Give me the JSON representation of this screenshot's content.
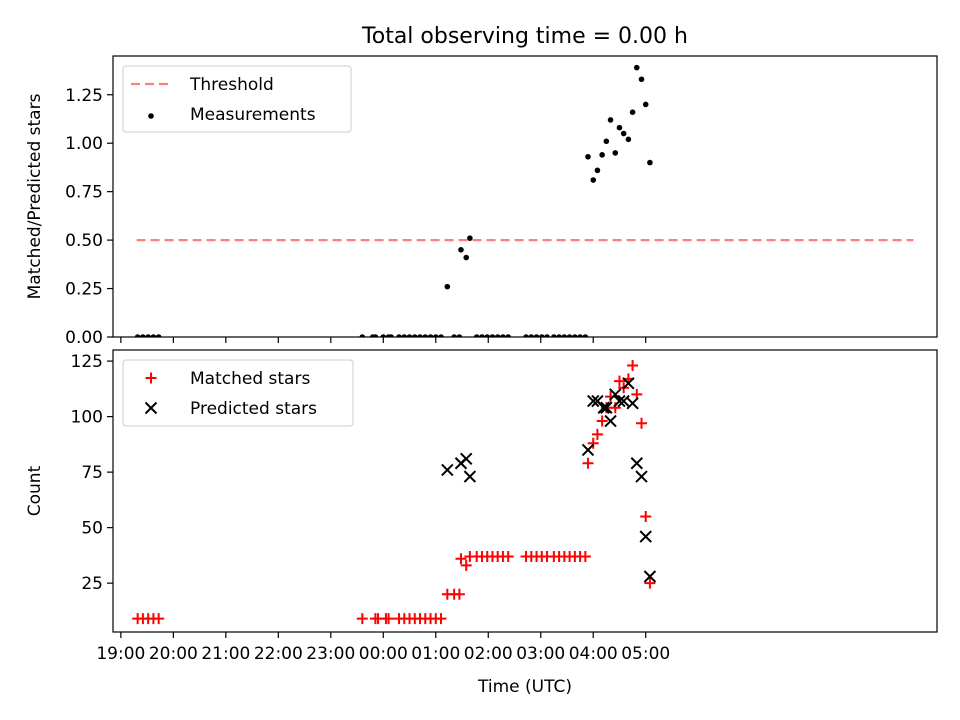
{
  "chart_data": [
    {
      "type": "scatter",
      "title": "Total observing time = 0.00 h",
      "xlabel": "",
      "ylabel": "Matched/Predicted stars",
      "ylim": [
        0,
        1.45
      ],
      "xlim": [
        -5.15,
        10.55
      ],
      "x_axis_unit": "hours relative to 00:00 UTC",
      "yticks": [
        0.0,
        0.25,
        0.5,
        0.75,
        1.0,
        1.25
      ],
      "ytick_labels": [
        "0.00",
        "0.25",
        "0.50",
        "0.75",
        "1.00",
        "1.25"
      ],
      "xticks_show_labels": false,
      "legend_position": "upper-left",
      "series": [
        {
          "name": "Threshold",
          "kind": "dashed-line",
          "color": "#ff7f7f",
          "x": [
            -4.7,
            10.1
          ],
          "y": [
            0.5,
            0.5
          ]
        },
        {
          "name": "Measurements",
          "kind": "dot",
          "color": "#000000",
          "points": [
            [
              -4.68,
              0
            ],
            [
              -4.58,
              0
            ],
            [
              -4.48,
              0
            ],
            [
              -4.38,
              0
            ],
            [
              -4.28,
              0
            ],
            [
              -0.4,
              0
            ],
            [
              -0.2,
              0
            ],
            [
              -0.15,
              0
            ],
            [
              0.0,
              0
            ],
            [
              0.1,
              0
            ],
            [
              0.15,
              0
            ],
            [
              0.3,
              0
            ],
            [
              0.4,
              0
            ],
            [
              0.5,
              0
            ],
            [
              0.6,
              0
            ],
            [
              0.7,
              0
            ],
            [
              0.8,
              0
            ],
            [
              0.9,
              0
            ],
            [
              1.0,
              0
            ],
            [
              1.1,
              0
            ],
            [
              1.22,
              0.26
            ],
            [
              1.35,
              0
            ],
            [
              1.45,
              0
            ],
            [
              1.48,
              0.45
            ],
            [
              1.58,
              0.41
            ],
            [
              1.65,
              0.51
            ],
            [
              1.78,
              0
            ],
            [
              1.88,
              0
            ],
            [
              1.98,
              0
            ],
            [
              2.08,
              0
            ],
            [
              2.18,
              0
            ],
            [
              2.28,
              0
            ],
            [
              2.38,
              0
            ],
            [
              2.72,
              0
            ],
            [
              2.82,
              0
            ],
            [
              2.92,
              0
            ],
            [
              3.02,
              0
            ],
            [
              3.12,
              0
            ],
            [
              3.25,
              0
            ],
            [
              3.35,
              0
            ],
            [
              3.45,
              0
            ],
            [
              3.55,
              0
            ],
            [
              3.65,
              0
            ],
            [
              3.75,
              0
            ],
            [
              3.85,
              0
            ],
            [
              3.9,
              0.93
            ],
            [
              4.0,
              0.81
            ],
            [
              4.08,
              0.86
            ],
            [
              4.17,
              0.94
            ],
            [
              4.25,
              1.01
            ],
            [
              4.33,
              1.12
            ],
            [
              4.42,
              0.95
            ],
            [
              4.5,
              1.08
            ],
            [
              4.58,
              1.05
            ],
            [
              4.67,
              1.02
            ],
            [
              4.75,
              1.16
            ],
            [
              4.83,
              1.39
            ],
            [
              4.92,
              1.33
            ],
            [
              5.0,
              1.2
            ],
            [
              5.08,
              0.9
            ]
          ]
        }
      ]
    },
    {
      "type": "scatter",
      "title": "",
      "xlabel": "Time (UTC)",
      "ylabel": "Count",
      "ylim": [
        3,
        130
      ],
      "xlim": [
        -5.15,
        10.55
      ],
      "yticks": [
        25,
        50,
        75,
        100,
        125
      ],
      "ytick_labels": [
        "25",
        "50",
        "75",
        "100",
        "125"
      ],
      "xticks": [
        -5,
        -4,
        -3,
        -2,
        -1,
        0,
        1,
        2,
        3,
        4,
        5
      ],
      "xtick_labels": [
        "19:00",
        "20:00",
        "21:00",
        "22:00",
        "23:00",
        "00:00",
        "01:00",
        "02:00",
        "03:00",
        "04:00",
        "05:00"
      ],
      "legend_position": "upper-left",
      "series": [
        {
          "name": "Matched stars",
          "kind": "plus",
          "color": "#ff0000",
          "points": [
            [
              -4.68,
              9
            ],
            [
              -4.58,
              9
            ],
            [
              -4.48,
              9
            ],
            [
              -4.38,
              9
            ],
            [
              -4.28,
              9
            ],
            [
              -0.4,
              9
            ],
            [
              -0.15,
              9
            ],
            [
              -0.1,
              9
            ],
            [
              0.05,
              9
            ],
            [
              0.1,
              9
            ],
            [
              0.3,
              9
            ],
            [
              0.4,
              9
            ],
            [
              0.5,
              9
            ],
            [
              0.6,
              9
            ],
            [
              0.7,
              9
            ],
            [
              0.8,
              9
            ],
            [
              0.9,
              9
            ],
            [
              1.0,
              9
            ],
            [
              1.1,
              9
            ],
            [
              1.22,
              20
            ],
            [
              1.35,
              20
            ],
            [
              1.45,
              20
            ],
            [
              1.48,
              36
            ],
            [
              1.58,
              33
            ],
            [
              1.65,
              37
            ],
            [
              1.78,
              37
            ],
            [
              1.88,
              37
            ],
            [
              1.98,
              37
            ],
            [
              2.08,
              37
            ],
            [
              2.18,
              37
            ],
            [
              2.28,
              37
            ],
            [
              2.38,
              37
            ],
            [
              2.72,
              37
            ],
            [
              2.82,
              37
            ],
            [
              2.92,
              37
            ],
            [
              3.02,
              37
            ],
            [
              3.12,
              37
            ],
            [
              3.25,
              37
            ],
            [
              3.35,
              37
            ],
            [
              3.45,
              37
            ],
            [
              3.55,
              37
            ],
            [
              3.65,
              37
            ],
            [
              3.75,
              37
            ],
            [
              3.85,
              37
            ],
            [
              3.9,
              79
            ],
            [
              4.0,
              88
            ],
            [
              4.08,
              92
            ],
            [
              4.17,
              98
            ],
            [
              4.25,
              104
            ],
            [
              4.33,
              109
            ],
            [
              4.42,
              104
            ],
            [
              4.5,
              116
            ],
            [
              4.58,
              113
            ],
            [
              4.67,
              117
            ],
            [
              4.75,
              123
            ],
            [
              4.83,
              110
            ],
            [
              4.92,
              97
            ],
            [
              5.0,
              55
            ],
            [
              5.08,
              25
            ]
          ]
        },
        {
          "name": "Predicted stars",
          "kind": "x",
          "color": "#000000",
          "points": [
            [
              1.22,
              76
            ],
            [
              1.48,
              79
            ],
            [
              1.58,
              81
            ],
            [
              1.65,
              73
            ],
            [
              3.9,
              85
            ],
            [
              4.0,
              107
            ],
            [
              4.08,
              107
            ],
            [
              4.2,
              104
            ],
            [
              4.25,
              104
            ],
            [
              4.33,
              98
            ],
            [
              4.42,
              110
            ],
            [
              4.5,
              107
            ],
            [
              4.58,
              107
            ],
            [
              4.67,
              115
            ],
            [
              4.75,
              106
            ],
            [
              4.83,
              79
            ],
            [
              4.92,
              73
            ],
            [
              5.0,
              46
            ],
            [
              5.08,
              28
            ]
          ]
        }
      ]
    }
  ]
}
